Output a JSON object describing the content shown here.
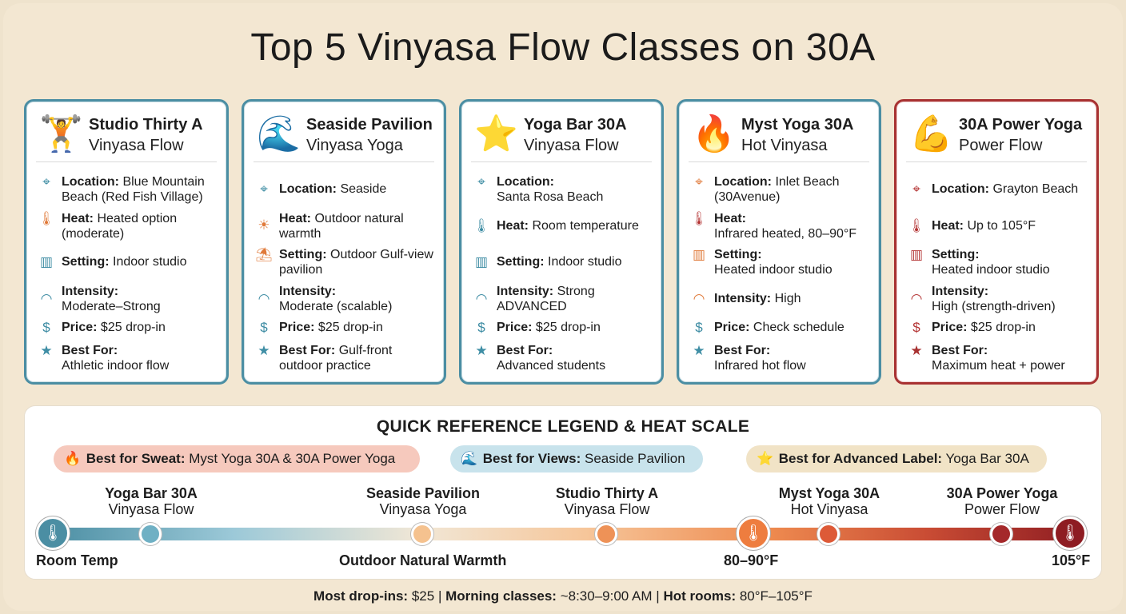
{
  "title": "Top 5 Vinyasa Flow Classes on 30A",
  "cards": [
    {
      "icon": "weightlifter-icon",
      "name": "Studio Thirty A",
      "style": "Vinyasa Flow",
      "location_label": "Location:",
      "location": "Blue Mountain Beach (Red Fish Village)",
      "heat_label": "Heat:",
      "heat": "Heated option (moderate)",
      "setting_label": "Setting:",
      "setting": "Indoor studio",
      "intensity_label": "Intensity:",
      "intensity": "Moderate–Strong",
      "price_label": "Price:",
      "price": "$25 drop-in",
      "best_label": "Best For:",
      "best": "Athletic indoor flow"
    },
    {
      "icon": "wave-icon",
      "name": "Seaside Pavilion",
      "style": "Vinyasa Yoga",
      "location_label": "Location:",
      "location": "Seaside",
      "heat_label": "Heat:",
      "heat": "Outdoor natural warmth",
      "setting_label": "Setting:",
      "setting": "Outdoor Gulf-view pavilion",
      "intensity_label": "Intensity:",
      "intensity": "Moderate (scalable)",
      "price_label": "Price:",
      "price": "$25 drop-in",
      "best_label": "Best For:",
      "best": "Gulf-front outdoor practice"
    },
    {
      "icon": "star-icon",
      "name": "Yoga Bar 30A",
      "style": "Vinyasa Flow",
      "location_label": "Location:",
      "location": "Santa Rosa Beach",
      "heat_label": "Heat:",
      "heat": "Room temperature",
      "setting_label": "Setting:",
      "setting": "Indoor studio",
      "intensity_label": "Intensity:",
      "intensity": "Strong ADVANCED",
      "price_label": "Price:",
      "price": "$25 drop-in",
      "best_label": "Best For:",
      "best": "Advanced students"
    },
    {
      "icon": "fire-icon",
      "name": "Myst Yoga 30A",
      "style": "Hot Vinyasa",
      "location_label": "Location:",
      "location": "Inlet Beach (30Avenue)",
      "heat_label": "Heat:",
      "heat": "Infrared heated, 80–90°F",
      "setting_label": "Setting:",
      "setting": "Heated indoor studio",
      "intensity_label": "Intensity:",
      "intensity": "High",
      "price_label": "Price:",
      "price": "Check schedule",
      "best_label": "Best For:",
      "best": "Infrared hot flow"
    },
    {
      "icon": "flexed-bicep-icon",
      "name": "30A Power Yoga",
      "style": "Power Flow",
      "location_label": "Location:",
      "location": "Grayton Beach",
      "heat_label": "Heat:",
      "heat": "Up to 105°F",
      "setting_label": "Setting:",
      "setting": "Heated indoor studio",
      "intensity_label": "Intensity:",
      "intensity": "High (strength-driven)",
      "price_label": "Price:",
      "price": "$25 drop-in",
      "best_label": "Best For:",
      "best": "Maximum heat + power"
    }
  ],
  "legend": {
    "title": "QUICK REFERENCE LEGEND & HEAT SCALE",
    "sweat_label": "Best for Sweat:",
    "sweat": "Myst Yoga 30A & 30A Power Yoga",
    "views_label": "Best for Views:",
    "views": "Seaside Pavilion",
    "advanced_label": "Best for Advanced Label:",
    "advanced": "Yoga Bar 30A"
  },
  "scale": {
    "marks": [
      {
        "name": "Yoga Bar 30A",
        "style": "Vinyasa Flow",
        "color": "#4b8ea3"
      },
      {
        "name": "Seaside Pavilion",
        "style": "Vinyasa Yoga",
        "color": "#f5c28f"
      },
      {
        "name": "Studio Thirty A",
        "style": "Vinyasa Flow",
        "color": "#ee9257"
      },
      {
        "name": "Myst Yoga 30A",
        "style": "Hot Vinyasa",
        "color": "#dd5a37"
      },
      {
        "name": "30A Power Yoga",
        "style": "Power Flow",
        "color": "#a4282a"
      }
    ],
    "labels": {
      "room_temp": "Room Temp",
      "outdoor": "Outdoor Natural Warmth",
      "mid": "80–90°F",
      "max": "105°F"
    },
    "colors": {
      "cool": "#4b8ea3",
      "hot": "#8e1c22",
      "mid": "#ee8a4f"
    }
  },
  "footer": {
    "drop_label": "Most drop-ins:",
    "drop": "$25",
    "morning_label": "Morning classes:",
    "morning": "~8:30–9:00 AM",
    "hot_label": "Hot rooms:",
    "hot": "80°F–105°F"
  }
}
